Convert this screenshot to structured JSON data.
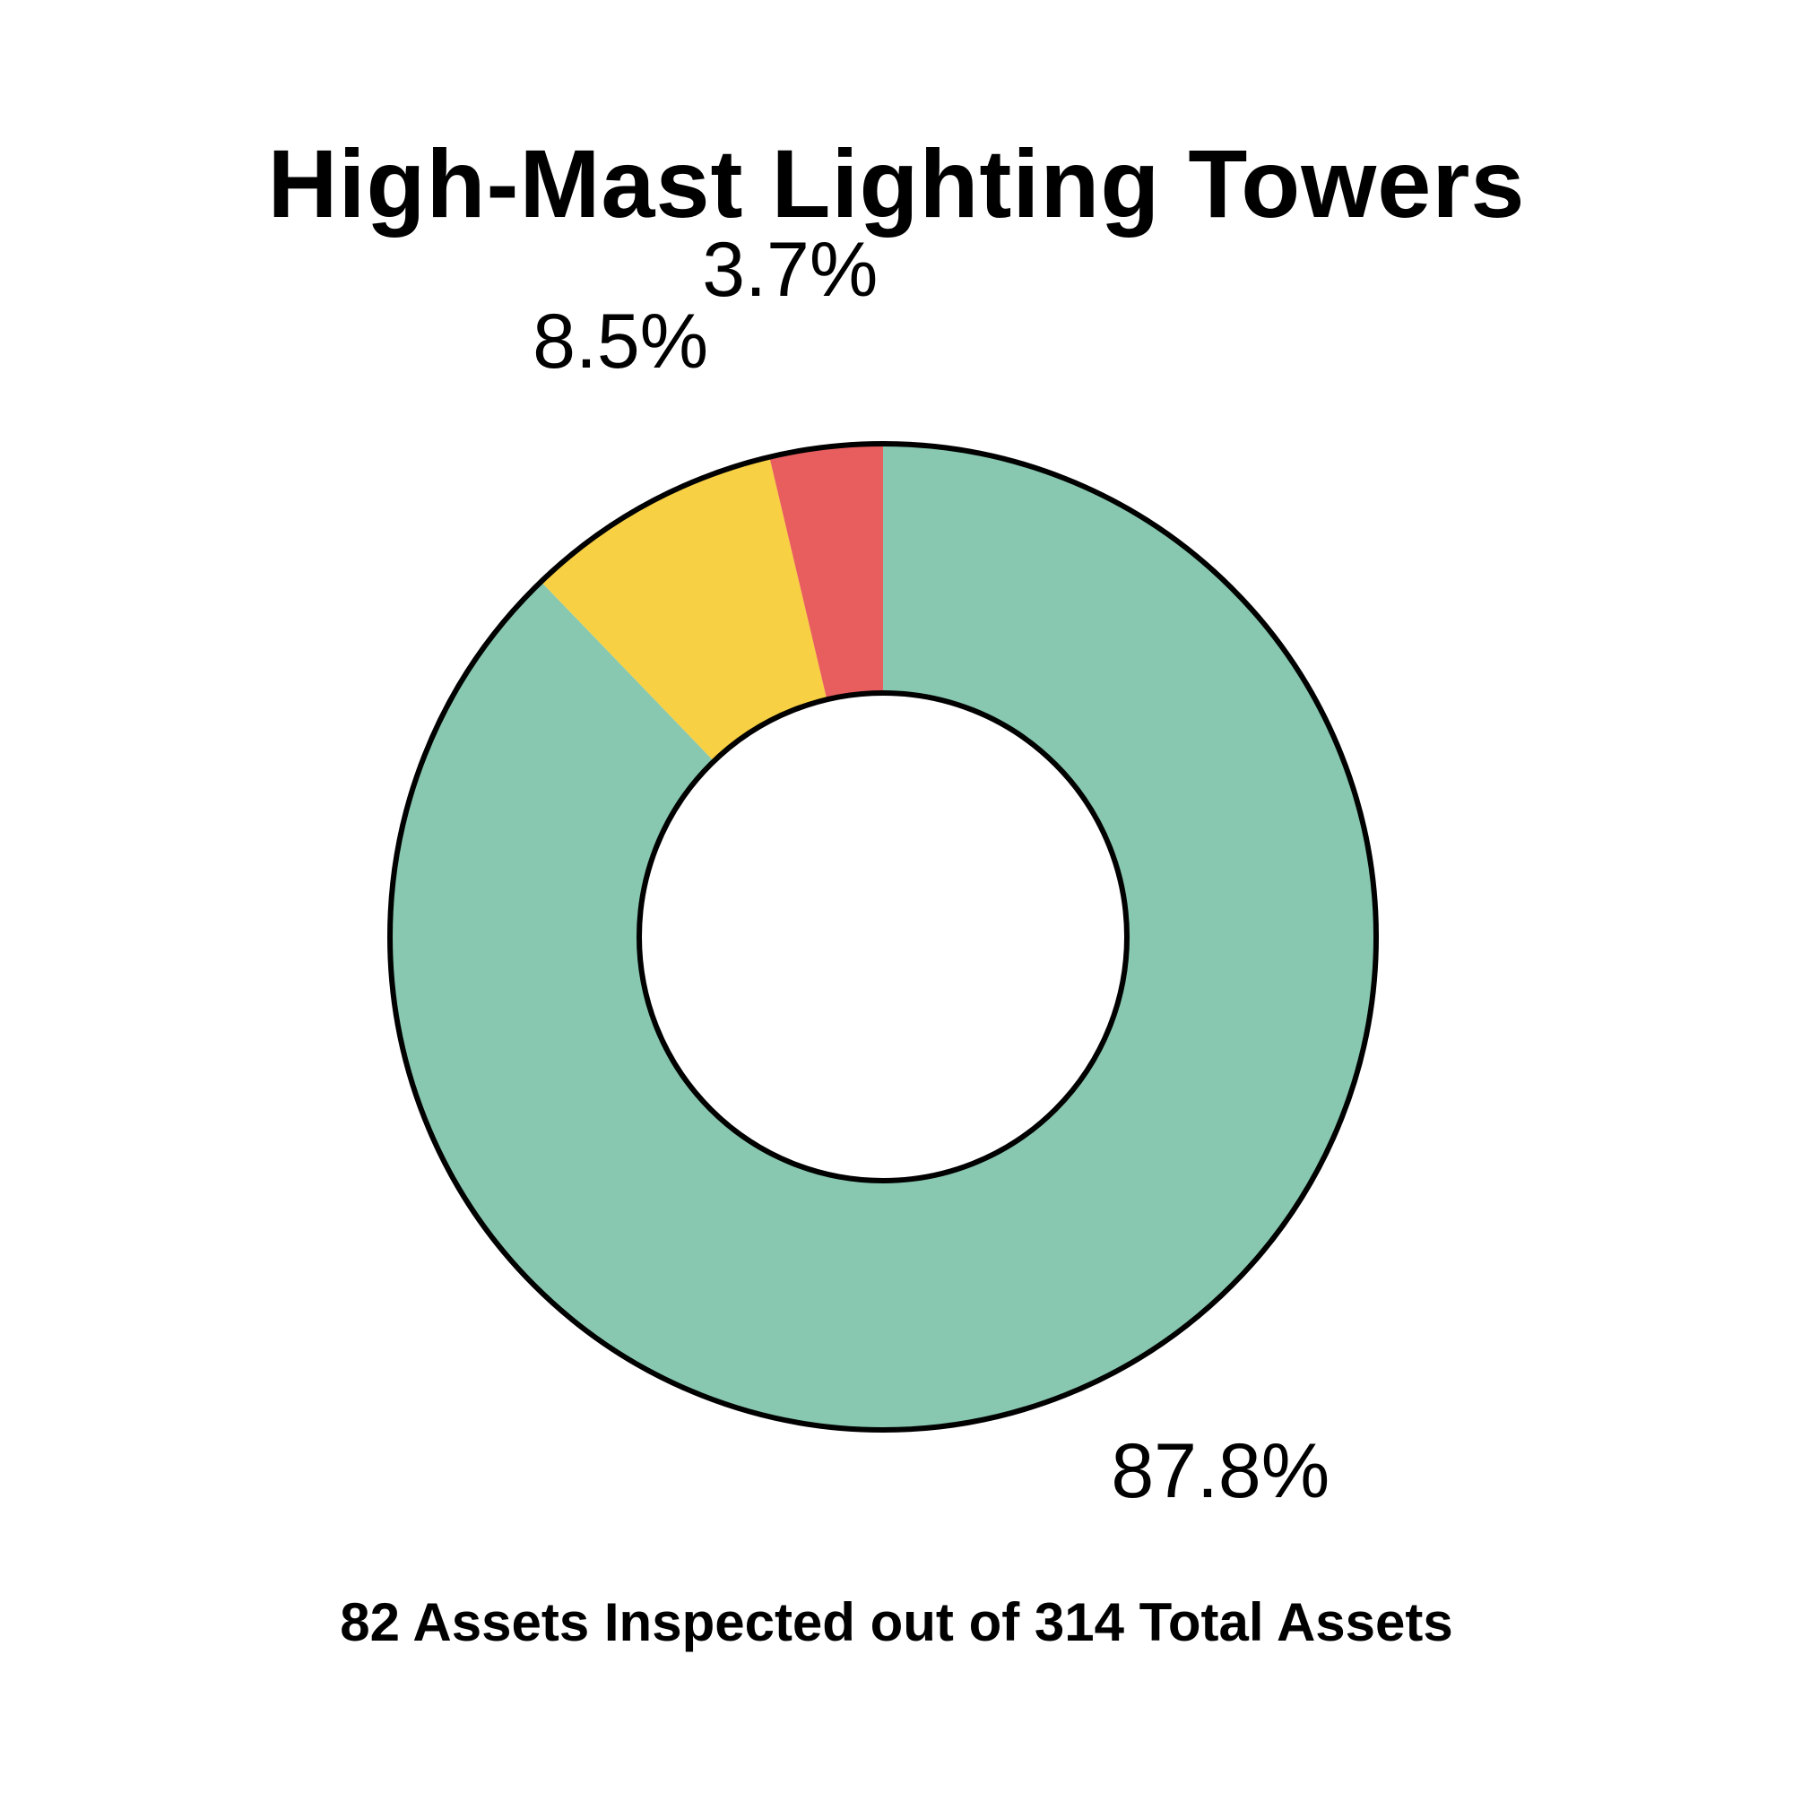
{
  "chart_data": {
    "type": "pie",
    "variant": "donut",
    "title": "High-Mast Lighting Towers",
    "footer": "82 Assets Inspected out of 314 Total Assets",
    "slices": [
      {
        "value": 87.8,
        "label": "87.8%",
        "color": "#88c8b0"
      },
      {
        "value": 8.5,
        "label": "8.5%",
        "color": "#f8d044"
      },
      {
        "value": 3.7,
        "label": "3.7%",
        "color": "#e85e5e"
      }
    ],
    "start_angle_deg": 0,
    "direction": "clockwise",
    "legend": "none"
  }
}
